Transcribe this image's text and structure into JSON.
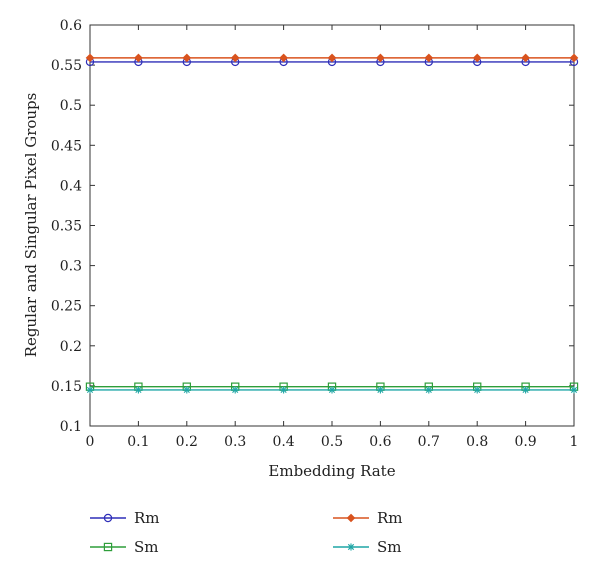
{
  "chart_data": {
    "type": "line",
    "title": "",
    "xlabel": "Embedding Rate",
    "ylabel": "Regular and Singular Pixel Groups",
    "xlim": [
      0,
      1
    ],
    "ylim": [
      0.1,
      0.6
    ],
    "x_ticks": [
      0,
      0.1,
      0.2,
      0.3,
      0.4,
      0.5,
      0.6,
      0.7,
      0.8,
      0.9,
      1
    ],
    "x_tick_labels": [
      "0",
      "0.1",
      "0.2",
      "0.3",
      "0.4",
      "0.5",
      "0.6",
      "0.7",
      "0.8",
      "0.9",
      "1"
    ],
    "y_ticks": [
      0.1,
      0.15,
      0.2,
      0.25,
      0.3,
      0.35,
      0.4,
      0.45,
      0.5,
      0.55,
      0.6
    ],
    "y_tick_labels": [
      "0.1",
      "0.15",
      "0.2",
      "0.25",
      "0.3",
      "0.35",
      "0.4",
      "0.45",
      "0.5",
      "0.55",
      "0.6"
    ],
    "grid": false,
    "legend_position": "bottom",
    "x": [
      0,
      0.1,
      0.2,
      0.3,
      0.4,
      0.5,
      0.6,
      0.7,
      0.8,
      0.9,
      1
    ],
    "series": [
      {
        "name": "Rm",
        "color": "#2e2eb8",
        "marker": "circle",
        "values": [
          0.554,
          0.554,
          0.554,
          0.554,
          0.554,
          0.554,
          0.554,
          0.554,
          0.554,
          0.554,
          0.554
        ]
      },
      {
        "name": "Rm",
        "color": "#d9531e",
        "marker": "diamond",
        "values": [
          0.559,
          0.559,
          0.559,
          0.559,
          0.559,
          0.559,
          0.559,
          0.559,
          0.559,
          0.559,
          0.559
        ]
      },
      {
        "name": "Sm",
        "color": "#2e9e3a",
        "marker": "square",
        "values": [
          0.149,
          0.149,
          0.149,
          0.149,
          0.149,
          0.149,
          0.149,
          0.149,
          0.149,
          0.149,
          0.149
        ]
      },
      {
        "name": "Sm",
        "color": "#1fa6a6",
        "marker": "star",
        "values": [
          0.145,
          0.145,
          0.145,
          0.145,
          0.145,
          0.145,
          0.145,
          0.145,
          0.145,
          0.145,
          0.145
        ]
      }
    ]
  }
}
